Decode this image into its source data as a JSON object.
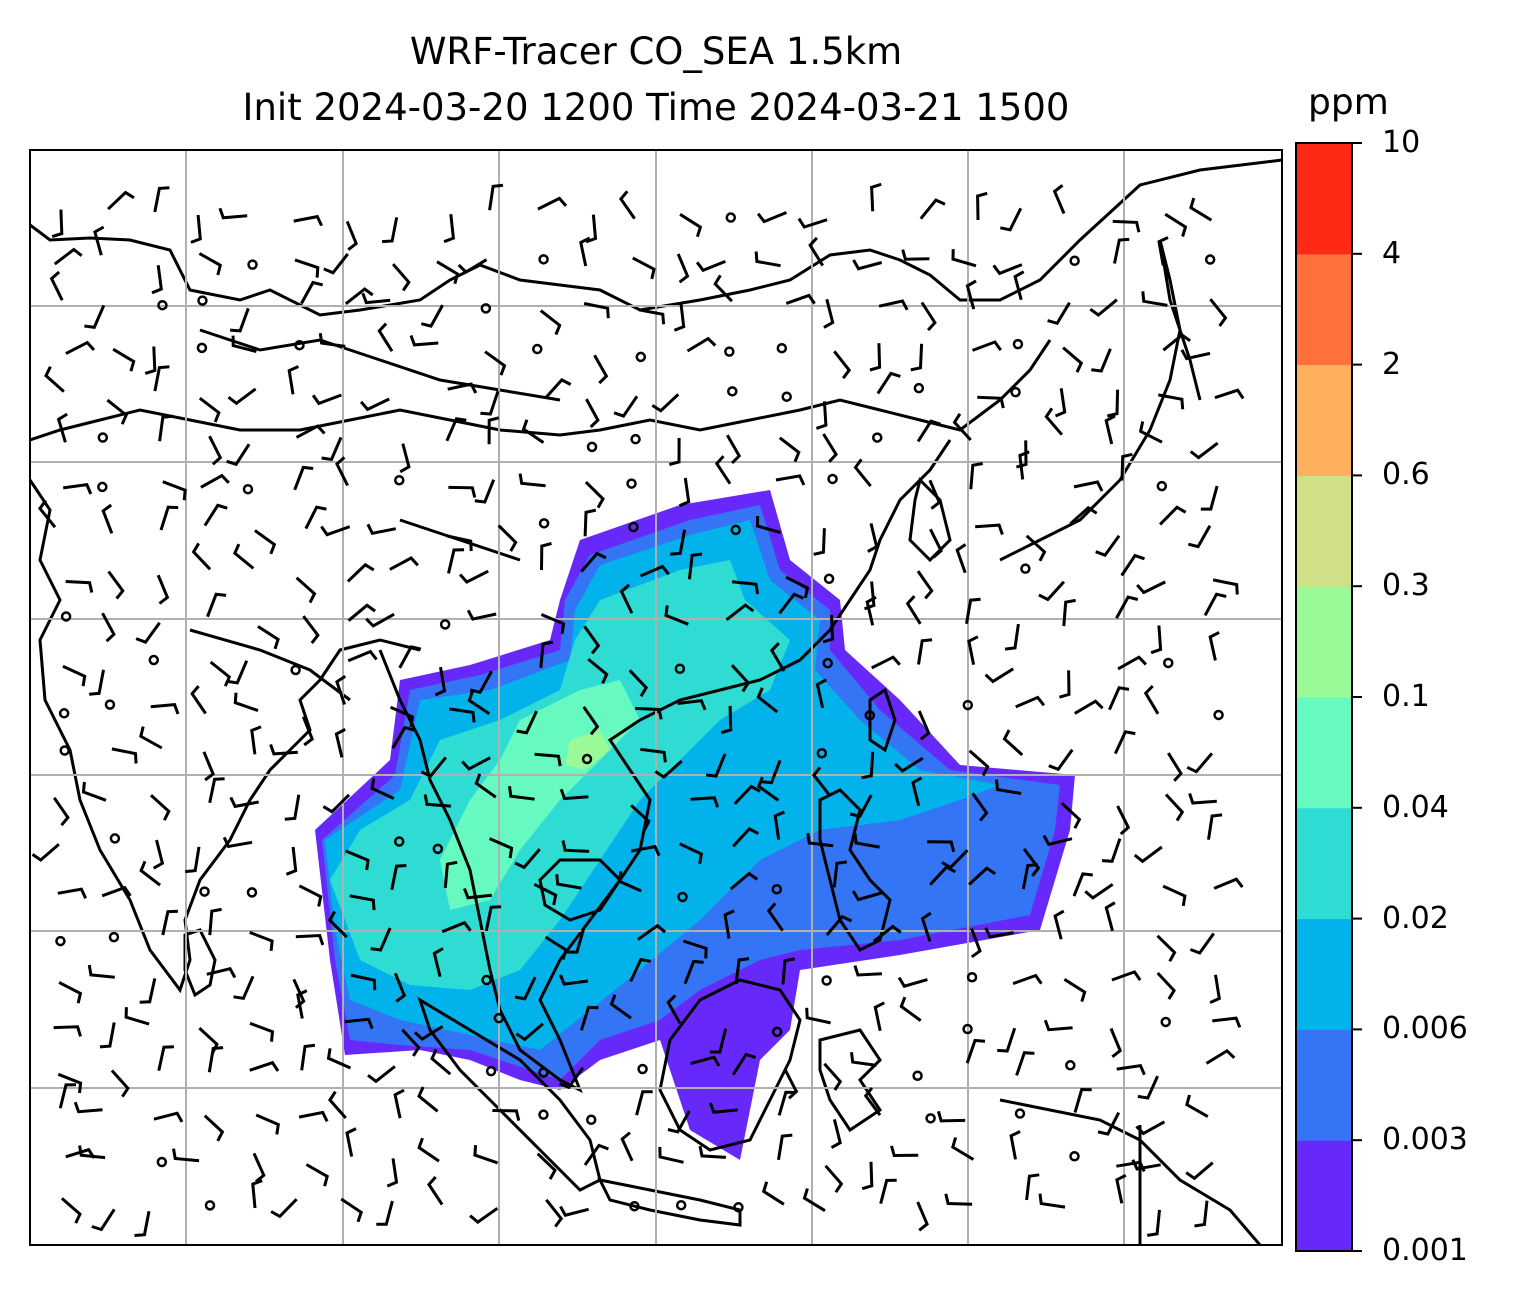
{
  "title": {
    "line1": "WRF-Tracer CO_SEA 1.5km",
    "line2": "Init 2024-03-20 1200 Time 2024-03-21 1500"
  },
  "colorbar": {
    "unit": "ppm",
    "levels": [
      "0.001",
      "0.003",
      "0.006",
      "0.02",
      "0.04",
      "0.1",
      "0.3",
      "0.6",
      "2",
      "4",
      "10"
    ],
    "colors": [
      "#6729fa",
      "#3375f4",
      "#02b2ea",
      "#2fdcd3",
      "#66fac1",
      "#99fa97",
      "#cfe087",
      "#ffb05d",
      "#ff703d",
      "#ff2a15"
    ]
  },
  "map": {
    "variable": "CO tracer concentration",
    "overlay": "wind barbs",
    "plume_colors": {
      "outer": "#6729fa",
      "band2": "#3375f4",
      "band3": "#02b2ea",
      "band4": "#2fdcd3",
      "core": "#66fac1",
      "peak": "#99fa97"
    },
    "gridline_color": "#b0b0b0",
    "coastline_color": "#000000"
  }
}
